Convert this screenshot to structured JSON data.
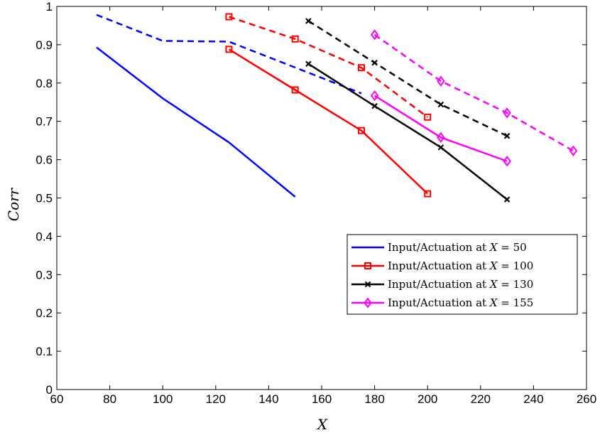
{
  "chart_data": {
    "type": "line",
    "title": "",
    "xlabel": "X",
    "ylabel": "Corr",
    "xlim": [
      60,
      260
    ],
    "ylim": [
      0,
      1
    ],
    "xticks": [
      60,
      80,
      100,
      120,
      140,
      160,
      180,
      200,
      220,
      240,
      260
    ],
    "yticks": [
      0,
      0.1,
      0.2,
      0.3,
      0.4,
      0.5,
      0.6,
      0.7,
      0.8,
      0.9,
      1
    ],
    "xtick_labels": [
      "60",
      "80",
      "100",
      "120",
      "140",
      "160",
      "180",
      "200",
      "220",
      "240",
      "260"
    ],
    "ytick_labels": [
      "0",
      "0.1",
      "0.2",
      "0.3",
      "0.4",
      "0.5",
      "0.6",
      "0.7",
      "0.8",
      "0.9",
      "1"
    ],
    "grid": true,
    "legend_position": "center-right",
    "series": [
      {
        "name": "Input/Actuation at X = 50",
        "legend_prefix": "Input/Actuation at ",
        "legend_var": "X",
        "legend_suffix": " = 50",
        "color": "#0000ff",
        "marker": "none",
        "solid": {
          "x": [
            75,
            100,
            125,
            150
          ],
          "y": [
            0.893,
            0.76,
            0.645,
            0.503
          ]
        },
        "dashed": {
          "x": [
            75,
            100,
            125,
            175
          ],
          "y": [
            0.978,
            0.91,
            0.908,
            0.773
          ]
        }
      },
      {
        "name": "Input/Actuation at X = 100",
        "legend_prefix": "Input/Actuation at ",
        "legend_var": "X",
        "legend_suffix": " = 100",
        "color": "#ff0000",
        "marker": "square",
        "solid": {
          "x": [
            125,
            150,
            175,
            200
          ],
          "y": [
            0.888,
            0.782,
            0.676,
            0.511
          ]
        },
        "dashed": {
          "x": [
            125,
            150,
            175,
            200
          ],
          "y": [
            0.973,
            0.915,
            0.84,
            0.711
          ]
        }
      },
      {
        "name": "Input/Actuation at X = 130",
        "legend_prefix": "Input/Actuation at ",
        "legend_var": "X",
        "legend_suffix": " = 130",
        "color": "#000000",
        "marker": "x",
        "solid": {
          "x": [
            155,
            180,
            205,
            230
          ],
          "y": [
            0.85,
            0.74,
            0.632,
            0.496
          ]
        },
        "dashed": {
          "x": [
            155,
            180,
            205,
            230
          ],
          "y": [
            0.962,
            0.853,
            0.744,
            0.662
          ]
        }
      },
      {
        "name": "Input/Actuation at X = 155",
        "legend_prefix": "Input/Actuation at ",
        "legend_var": "X",
        "legend_suffix": " = 155",
        "color": "#ff00ff",
        "marker": "diamond",
        "solid": {
          "x": [
            180,
            205,
            230
          ],
          "y": [
            0.767,
            0.658,
            0.596
          ]
        },
        "dashed": {
          "x": [
            180,
            205,
            230,
            255
          ],
          "y": [
            0.926,
            0.805,
            0.722,
            0.623
          ]
        }
      }
    ]
  }
}
